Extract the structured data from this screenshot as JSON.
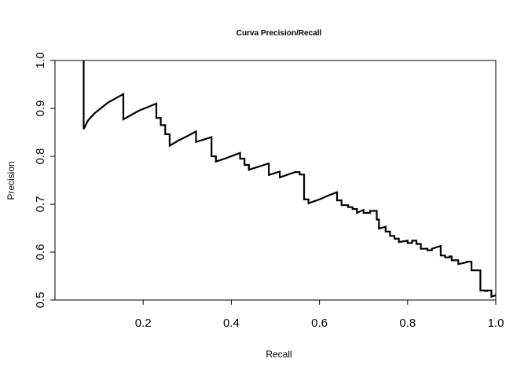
{
  "chart_data": {
    "type": "line",
    "title": "Curva Precision/Recall",
    "xlabel": "Recall",
    "ylabel": "Precision",
    "xlim": [
      0.0,
      1.0
    ],
    "ylim": [
      0.5,
      1.0
    ],
    "x_ticks": [
      0.2,
      0.4,
      0.6,
      0.8,
      1.0
    ],
    "x_tick_labels": [
      "0.2",
      "0.4",
      "0.6",
      "0.8",
      "1.0"
    ],
    "y_ticks": [
      0.5,
      0.6,
      0.7,
      0.8,
      0.9,
      1.0
    ],
    "y_tick_labels": [
      "0.5",
      "0.6",
      "0.7",
      "0.8",
      "0.9",
      "1.0"
    ],
    "grid": false,
    "legend": "none",
    "series": [
      {
        "color": "#000000",
        "x": [
          0.065,
          0.065,
          0.075,
          0.09,
          0.12,
          0.155,
          0.155,
          0.19,
          0.23,
          0.23,
          0.24,
          0.24,
          0.25,
          0.25,
          0.26,
          0.26,
          0.28,
          0.3,
          0.32,
          0.32,
          0.355,
          0.355,
          0.365,
          0.365,
          0.385,
          0.42,
          0.42,
          0.43,
          0.43,
          0.44,
          0.44,
          0.485,
          0.485,
          0.51,
          0.51,
          0.545,
          0.555,
          0.555,
          0.565,
          0.565,
          0.575,
          0.575,
          0.6,
          0.625,
          0.64,
          0.64,
          0.65,
          0.65,
          0.665,
          0.665,
          0.675,
          0.675,
          0.685,
          0.685,
          0.7,
          0.7,
          0.715,
          0.715,
          0.73,
          0.73,
          0.735,
          0.735,
          0.75,
          0.75,
          0.76,
          0.76,
          0.77,
          0.77,
          0.78,
          0.78,
          0.8,
          0.8,
          0.81,
          0.81,
          0.82,
          0.82,
          0.83,
          0.83,
          0.845,
          0.845,
          0.855,
          0.855,
          0.875,
          0.875,
          0.885,
          0.885,
          0.895,
          0.895,
          0.9,
          0.9,
          0.915,
          0.915,
          0.935,
          0.935,
          0.945,
          0.945,
          0.965,
          0.965,
          0.975,
          0.975,
          0.98,
          0.98,
          0.99,
          0.99,
          1.0
        ],
        "y": [
          1.0,
          0.857,
          0.875,
          0.89,
          0.912,
          0.93,
          0.877,
          0.895,
          0.91,
          0.88,
          0.88,
          0.865,
          0.865,
          0.846,
          0.846,
          0.822,
          0.833,
          0.842,
          0.852,
          0.83,
          0.84,
          0.8,
          0.8,
          0.789,
          0.795,
          0.807,
          0.795,
          0.795,
          0.782,
          0.782,
          0.772,
          0.785,
          0.761,
          0.768,
          0.756,
          0.767,
          0.767,
          0.762,
          0.762,
          0.71,
          0.71,
          0.702,
          0.71,
          0.72,
          0.725,
          0.708,
          0.708,
          0.698,
          0.698,
          0.694,
          0.694,
          0.69,
          0.69,
          0.682,
          0.688,
          0.682,
          0.682,
          0.686,
          0.686,
          0.668,
          0.668,
          0.649,
          0.653,
          0.643,
          0.643,
          0.634,
          0.634,
          0.628,
          0.628,
          0.621,
          0.624,
          0.619,
          0.619,
          0.624,
          0.624,
          0.617,
          0.617,
          0.607,
          0.607,
          0.604,
          0.604,
          0.607,
          0.613,
          0.593,
          0.593,
          0.589,
          0.589,
          0.591,
          0.591,
          0.583,
          0.583,
          0.575,
          0.579,
          0.58,
          0.58,
          0.562,
          0.562,
          0.52,
          0.52,
          0.519,
          0.519,
          0.52,
          0.52,
          0.507,
          0.51
        ]
      }
    ]
  }
}
